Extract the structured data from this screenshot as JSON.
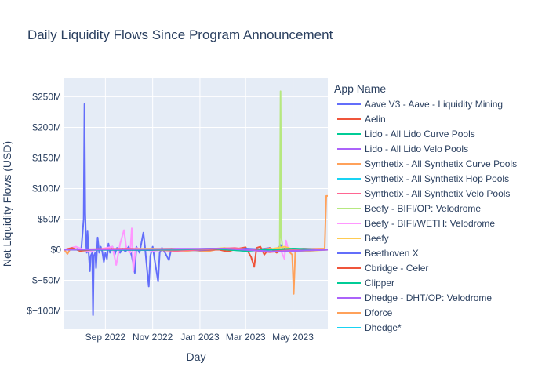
{
  "chart_data": {
    "type": "line",
    "title": "Daily Liquidity Flows Since Program Announcement",
    "xlabel": "Day",
    "ylabel": "Net Liquidity Flows (USD)",
    "xlim": [
      "2022-07-10",
      "2023-06-15"
    ],
    "ylim": [
      -130000000,
      280000000
    ],
    "x_ticks": [
      {
        "date": "2022-09-01",
        "label": "Sep 2022"
      },
      {
        "date": "2022-11-01",
        "label": "Nov 2022"
      },
      {
        "date": "2023-01-01",
        "label": "Jan 2023"
      },
      {
        "date": "2023-03-01",
        "label": "Mar 2023"
      },
      {
        "date": "2023-05-01",
        "label": "May 2023"
      }
    ],
    "y_ticks": [
      {
        "value": 250000000,
        "label": "$250M"
      },
      {
        "value": 200000000,
        "label": "$200M"
      },
      {
        "value": 150000000,
        "label": "$150M"
      },
      {
        "value": 100000000,
        "label": "$100M"
      },
      {
        "value": 50000000,
        "label": "$50M"
      },
      {
        "value": 0,
        "label": "$0"
      },
      {
        "value": -50000000,
        "label": "$−50M"
      },
      {
        "value": -100000000,
        "label": "$−100M"
      }
    ],
    "grid": true,
    "legend": {
      "title": "App Name",
      "position": "right",
      "entries": [
        {
          "name": "Aave V3 - Aave - Liquidity Mining",
          "color": "#636efa"
        },
        {
          "name": "Aelin",
          "color": "#ef553b"
        },
        {
          "name": "Lido - All Lido Curve Pools",
          "color": "#00cc96"
        },
        {
          "name": "Lido - All Lido Velo Pools",
          "color": "#ab63fa"
        },
        {
          "name": "Synthetix - All Synthetix Curve Pools",
          "color": "#ffa15a"
        },
        {
          "name": "Synthetix - All Synthetix Hop Pools",
          "color": "#19d3f3"
        },
        {
          "name": "Synthetix - All Synthetix Velo Pools",
          "color": "#ff6692"
        },
        {
          "name": "Beefy - BIFI/OP: Velodrome",
          "color": "#b6e880"
        },
        {
          "name": "Beefy - BIFI/WETH: Velodrome",
          "color": "#ff97ff"
        },
        {
          "name": "Beefy",
          "color": "#fecb52"
        },
        {
          "name": "Beethoven X",
          "color": "#636efa"
        },
        {
          "name": "Cbridge - Celer",
          "color": "#ef553b"
        },
        {
          "name": "Clipper",
          "color": "#00cc96"
        },
        {
          "name": "Dhedge - DHT/OP: Velodrome",
          "color": "#ab63fa"
        },
        {
          "name": "Dforce",
          "color": "#ffa15a"
        },
        {
          "name": "Dhedge*",
          "color": "#19d3f3"
        }
      ]
    },
    "series": [
      {
        "name": "Aave V3 - Aave - Liquidity Mining",
        "color": "#636efa",
        "points": [
          [
            "2022-07-10",
            0
          ],
          [
            "2022-07-25",
            1000000
          ],
          [
            "2022-08-01",
            2000000
          ],
          [
            "2022-08-04",
            50000000
          ],
          [
            "2022-08-05",
            238000000
          ],
          [
            "2022-08-06",
            60000000
          ],
          [
            "2022-08-07",
            10000000
          ],
          [
            "2022-08-08",
            -5000000
          ],
          [
            "2022-08-09",
            30000000
          ],
          [
            "2022-08-10",
            5000000
          ],
          [
            "2022-08-12",
            -35000000
          ],
          [
            "2022-08-13",
            -10000000
          ],
          [
            "2022-08-15",
            -5000000
          ],
          [
            "2022-08-16",
            -107000000
          ],
          [
            "2022-08-17",
            -10000000
          ],
          [
            "2022-08-19",
            -5000000
          ],
          [
            "2022-08-20",
            -30000000
          ],
          [
            "2022-08-22",
            20000000
          ],
          [
            "2022-08-24",
            -5000000
          ],
          [
            "2022-08-26",
            5000000
          ],
          [
            "2022-08-28",
            -3000000
          ],
          [
            "2022-08-30",
            -20000000
          ],
          [
            "2022-09-01",
            -5000000
          ],
          [
            "2022-09-03",
            -15000000
          ],
          [
            "2022-09-05",
            10000000
          ],
          [
            "2022-09-07",
            -5000000
          ],
          [
            "2022-09-10",
            5000000
          ],
          [
            "2022-09-13",
            -8000000
          ],
          [
            "2022-09-16",
            3000000
          ],
          [
            "2022-09-20",
            -5000000
          ],
          [
            "2022-09-23",
            2000000
          ],
          [
            "2022-09-27",
            -3000000
          ],
          [
            "2022-10-01",
            5000000
          ],
          [
            "2022-10-05",
            -10000000
          ],
          [
            "2022-10-09",
            -38000000
          ],
          [
            "2022-10-11",
            5000000
          ],
          [
            "2022-10-15",
            -5000000
          ],
          [
            "2022-10-20",
            28000000
          ],
          [
            "2022-10-22",
            5000000
          ],
          [
            "2022-10-25",
            -35000000
          ],
          [
            "2022-10-27",
            -60000000
          ],
          [
            "2022-10-29",
            -10000000
          ],
          [
            "2022-11-01",
            5000000
          ],
          [
            "2022-11-04",
            -20000000
          ],
          [
            "2022-11-08",
            -52000000
          ],
          [
            "2022-11-10",
            -5000000
          ],
          [
            "2022-11-13",
            3000000
          ],
          [
            "2022-11-17",
            -5000000
          ],
          [
            "2022-11-22",
            -17000000
          ],
          [
            "2022-11-25",
            2000000
          ],
          [
            "2022-12-01",
            -2000000
          ],
          [
            "2022-12-10",
            1000000
          ],
          [
            "2022-12-20",
            -1000000
          ],
          [
            "2023-01-01",
            0
          ],
          [
            "2023-02-01",
            1000000
          ],
          [
            "2023-03-01",
            -2000000
          ],
          [
            "2023-04-01",
            3000000
          ],
          [
            "2023-04-10",
            -2000000
          ],
          [
            "2023-04-15",
            8000000
          ],
          [
            "2023-04-20",
            -3000000
          ],
          [
            "2023-05-01",
            2000000
          ],
          [
            "2023-05-20",
            0
          ],
          [
            "2023-06-15",
            0
          ]
        ]
      },
      {
        "name": "Aelin",
        "color": "#ef553b",
        "points": [
          [
            "2022-07-10",
            0
          ],
          [
            "2022-12-01",
            0
          ],
          [
            "2023-01-20",
            2000000
          ],
          [
            "2023-02-05",
            -3000000
          ],
          [
            "2023-02-20",
            2000000
          ],
          [
            "2023-03-01",
            4000000
          ],
          [
            "2023-03-08",
            -12000000
          ],
          [
            "2023-03-12",
            -28000000
          ],
          [
            "2023-03-15",
            3000000
          ],
          [
            "2023-03-20",
            5000000
          ],
          [
            "2023-03-25",
            -8000000
          ],
          [
            "2023-04-01",
            3000000
          ],
          [
            "2023-04-10",
            -5000000
          ],
          [
            "2023-04-20",
            2000000
          ],
          [
            "2023-05-01",
            -2000000
          ],
          [
            "2023-06-15",
            0
          ]
        ]
      },
      {
        "name": "Synthetix - All Synthetix Curve Pools",
        "color": "#ffa15a",
        "points": [
          [
            "2022-07-10",
            0
          ],
          [
            "2022-07-14",
            -7000000
          ],
          [
            "2022-07-18",
            2000000
          ],
          [
            "2022-08-01",
            0
          ],
          [
            "2022-12-01",
            2000000
          ],
          [
            "2023-01-10",
            -3000000
          ],
          [
            "2023-02-01",
            3000000
          ],
          [
            "2023-03-01",
            -2000000
          ],
          [
            "2023-04-01",
            2000000
          ],
          [
            "2023-04-25",
            -2000000
          ],
          [
            "2023-04-30",
            -8000000
          ],
          [
            "2023-05-02",
            -72000000
          ],
          [
            "2023-05-04",
            -3000000
          ],
          [
            "2023-05-10",
            1000000
          ],
          [
            "2023-06-11",
            2000000
          ],
          [
            "2023-06-13",
            88000000
          ],
          [
            "2023-06-15",
            88000000
          ]
        ]
      },
      {
        "name": "Beefy - BIFI/OP: Velodrome",
        "color": "#b6e880",
        "points": [
          [
            "2022-07-10",
            0
          ],
          [
            "2023-04-12",
            0
          ],
          [
            "2023-04-14",
            5000000
          ],
          [
            "2023-04-15",
            259000000
          ],
          [
            "2023-04-16",
            20000000
          ],
          [
            "2023-04-18",
            0
          ],
          [
            "2023-06-15",
            0
          ]
        ]
      },
      {
        "name": "Beefy - BIFI/WETH: Velodrome",
        "color": "#ff97ff",
        "points": [
          [
            "2022-07-10",
            0
          ],
          [
            "2022-07-25",
            5000000
          ],
          [
            "2022-08-10",
            -3000000
          ],
          [
            "2022-09-10",
            5000000
          ],
          [
            "2022-09-15",
            -25000000
          ],
          [
            "2022-09-20",
            10000000
          ],
          [
            "2022-09-25",
            32000000
          ],
          [
            "2022-09-28",
            3000000
          ],
          [
            "2022-10-03",
            -5000000
          ],
          [
            "2022-10-05",
            35000000
          ],
          [
            "2022-10-07",
            -35000000
          ],
          [
            "2022-10-10",
            3000000
          ],
          [
            "2022-11-01",
            -2000000
          ],
          [
            "2022-12-01",
            2000000
          ],
          [
            "2023-04-15",
            0
          ],
          [
            "2023-04-20",
            -15000000
          ],
          [
            "2023-04-22",
            15000000
          ],
          [
            "2023-04-25",
            0
          ],
          [
            "2023-06-15",
            0
          ]
        ]
      },
      {
        "name": "Beefy",
        "color": "#fecb52",
        "points": [
          [
            "2022-07-10",
            0
          ],
          [
            "2022-11-01",
            2000000
          ],
          [
            "2022-12-15",
            -2000000
          ],
          [
            "2023-02-01",
            3000000
          ],
          [
            "2023-03-20",
            -2000000
          ],
          [
            "2023-04-20",
            5000000
          ],
          [
            "2023-05-10",
            -3000000
          ],
          [
            "2023-06-15",
            0
          ]
        ]
      },
      {
        "name": "Beethoven X",
        "color": "#636efa",
        "points": [
          [
            "2022-07-10",
            0
          ],
          [
            "2023-01-01",
            -1000000
          ],
          [
            "2023-03-01",
            2000000
          ],
          [
            "2023-05-01",
            -2000000
          ],
          [
            "2023-06-15",
            0
          ]
        ]
      },
      {
        "name": "Cbridge - Celer",
        "color": "#ef553b",
        "points": [
          [
            "2022-07-10",
            0
          ],
          [
            "2022-07-20",
            3000000
          ],
          [
            "2022-07-30",
            -2000000
          ],
          [
            "2022-08-15",
            0
          ],
          [
            "2023-06-15",
            0
          ]
        ]
      },
      {
        "name": "Synthetix - All Synthetix Velo Pools",
        "color": "#ff6692",
        "points": [
          [
            "2022-07-10",
            0
          ],
          [
            "2022-10-01",
            2000000
          ],
          [
            "2022-12-01",
            -2000000
          ],
          [
            "2023-02-15",
            3000000
          ],
          [
            "2023-04-01",
            -4000000
          ],
          [
            "2023-05-15",
            2000000
          ],
          [
            "2023-06-15",
            0
          ]
        ]
      },
      {
        "name": "Lido - All Lido Curve Pools",
        "color": "#00cc96",
        "points": [
          [
            "2022-07-10",
            0
          ],
          [
            "2022-12-01",
            0
          ],
          [
            "2023-01-15",
            2000000
          ],
          [
            "2023-03-01",
            -2000000
          ],
          [
            "2023-05-01",
            2000000
          ],
          [
            "2023-06-15",
            0
          ]
        ]
      },
      {
        "name": "Lido - All Lido Velo Pools",
        "color": "#ab63fa",
        "points": [
          [
            "2022-07-10",
            0
          ],
          [
            "2023-02-01",
            2000000
          ],
          [
            "2023-04-05",
            -3000000
          ],
          [
            "2023-06-15",
            0
          ]
        ]
      }
    ]
  }
}
